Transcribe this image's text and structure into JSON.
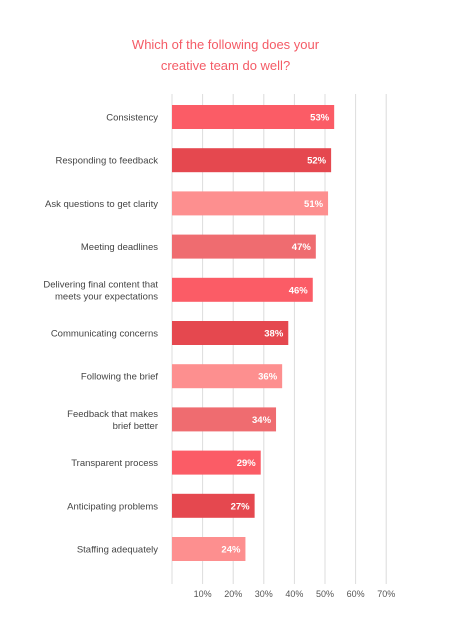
{
  "chart_data": {
    "type": "bar",
    "orientation": "horizontal",
    "title_lines": [
      "Which of the following does your",
      "creative team do well?"
    ],
    "categories": [
      [
        "Consistency"
      ],
      [
        "Responding to feedback"
      ],
      [
        "Ask questions to get clarity"
      ],
      [
        "Meeting deadlines"
      ],
      [
        "Delivering final content that",
        "meets your expectations"
      ],
      [
        "Communicating concerns"
      ],
      [
        "Following the brief"
      ],
      [
        "Feedback that makes",
        "brief better"
      ],
      [
        "Transparent process"
      ],
      [
        "Anticipating problems"
      ],
      [
        "Staffing adequately"
      ]
    ],
    "values": [
      53,
      52,
      51,
      47,
      46,
      38,
      36,
      34,
      29,
      27,
      24
    ],
    "value_labels": [
      "53%",
      "52%",
      "51%",
      "47%",
      "46%",
      "38%",
      "36%",
      "34%",
      "29%",
      "27%",
      "24%"
    ],
    "bar_colors": [
      "#fb5c66",
      "#e5484f",
      "#fd8f8f",
      "#ef6c70",
      "#fb5c66",
      "#e5484f",
      "#fd8f8f",
      "#ef6c70",
      "#fb5c66",
      "#e5484f",
      "#fd8f8f"
    ],
    "xlim": [
      0,
      70
    ],
    "x_ticks": [
      10,
      20,
      30,
      40,
      50,
      60,
      70
    ],
    "x_tick_labels": [
      "10%",
      "20%",
      "30%",
      "40%",
      "50%",
      "60%",
      "70%"
    ],
    "grid": true,
    "legend": "none"
  }
}
